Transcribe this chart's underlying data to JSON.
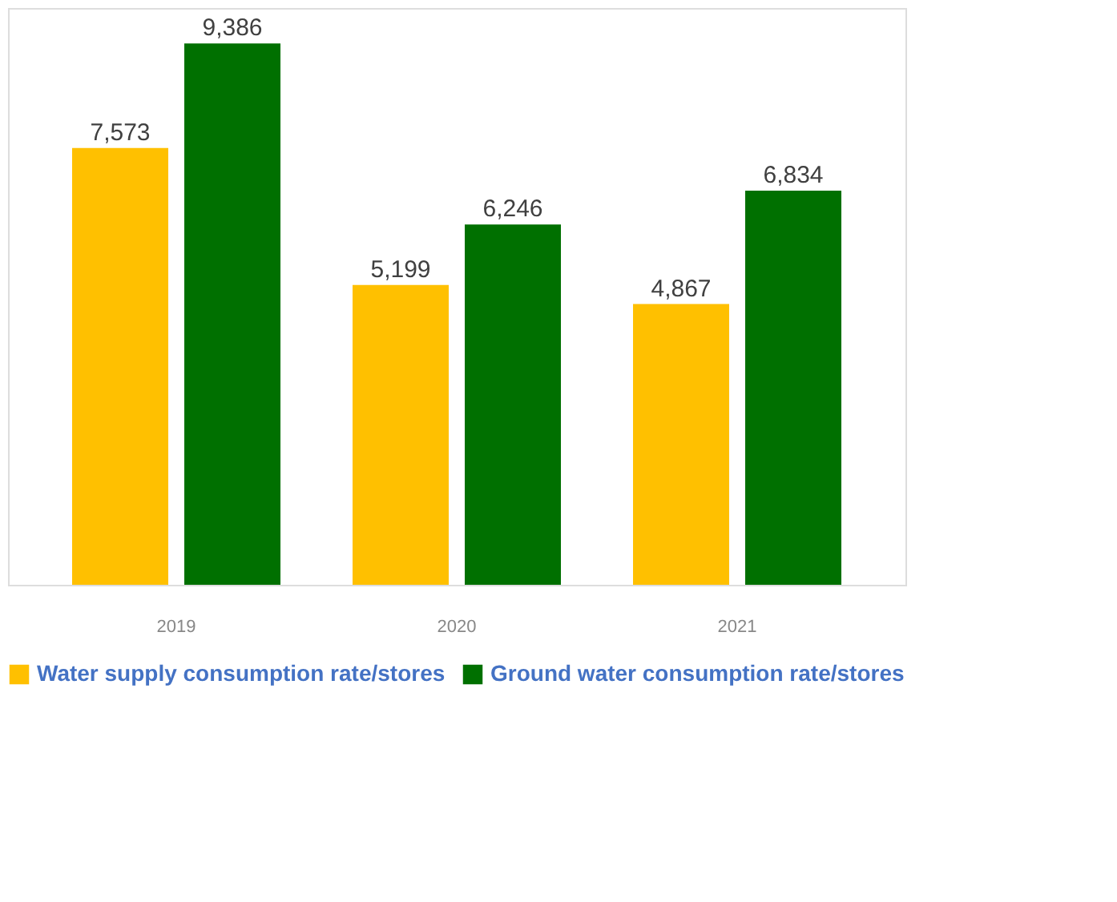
{
  "chart_data": {
    "type": "bar",
    "categories": [
      "2019",
      "2020",
      "2021"
    ],
    "series": [
      {
        "name": "Water supply consumption rate/stores",
        "color": "#ffc000",
        "values": [
          7573,
          5199,
          4867
        ],
        "value_labels": [
          "7,573",
          "5,199",
          "4,867"
        ]
      },
      {
        "name": "Ground water consumption rate/stores",
        "color": "#007000",
        "values": [
          9386,
          6246,
          6834
        ],
        "value_labels": [
          "9,386",
          "6,246",
          "6,834"
        ]
      }
    ],
    "legend": "bottom",
    "grid": false
  }
}
